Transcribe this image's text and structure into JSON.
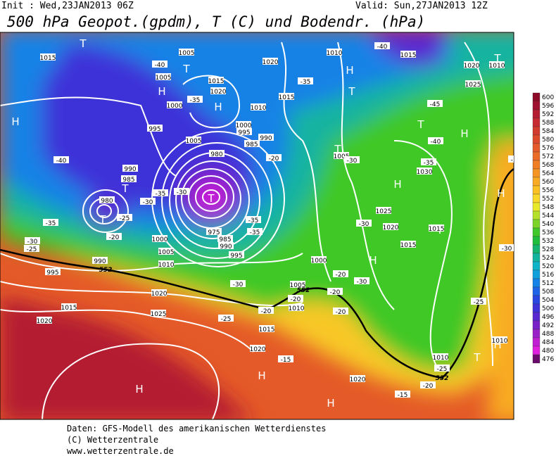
{
  "header": {
    "init": "Init : Wed,23JAN2013 06Z",
    "valid": "Valid: Sun,27JAN2013 12Z",
    "title": "500 hPa Geopot.(gpdm), T (C) und Bodendr. (hPa)"
  },
  "map": {
    "high_labels": [
      "H",
      "H",
      "H",
      "H",
      "H",
      "H",
      "H",
      "H",
      "H",
      "H",
      "H",
      "H"
    ],
    "low_labels": [
      "T",
      "T",
      "T",
      "T",
      "T",
      "T",
      "T",
      "T",
      "T",
      "T",
      "T"
    ],
    "isobar_labels": [
      "1015",
      "1005",
      "1005",
      "1015",
      "1020",
      "1000",
      "995",
      "1005",
      "1020",
      "1010",
      "1015",
      "1020",
      "1010",
      "1025",
      "1015",
      "1010",
      "1000",
      "995",
      "990",
      "985",
      "980",
      "990",
      "985",
      "980",
      "1000",
      "1005",
      "1010",
      "990",
      "995",
      "1020",
      "1015",
      "1020",
      "1025",
      "1000",
      "1005",
      "1010",
      "1015",
      "1020",
      "1020",
      "1005",
      "1030",
      "1025",
      "1020",
      "1015",
      "1015",
      "1010",
      "1010",
      "975",
      "985",
      "990",
      "995"
    ],
    "temperature_labels": [
      "-40",
      "-40",
      "-35",
      "-35",
      "-45",
      "-40",
      "-40",
      "-35",
      "-30",
      "-20",
      "-25",
      "-30",
      "-35",
      "-30",
      "-35",
      "-35",
      "-35",
      "-30",
      "-20",
      "-25",
      "-30",
      "-20",
      "-20",
      "-20",
      "-30",
      "-20",
      "-20",
      "-25",
      "-15",
      "-25",
      "-20",
      "-15",
      "-25",
      "-30",
      "-35",
      "-30"
    ],
    "contour_labels": [
      "552",
      "552",
      "552"
    ]
  },
  "colorbar": {
    "levels": [
      600,
      596,
      592,
      588,
      584,
      580,
      576,
      572,
      568,
      564,
      560,
      556,
      552,
      548,
      544,
      540,
      536,
      532,
      528,
      524,
      520,
      516,
      512,
      508,
      504,
      500,
      496,
      492,
      488,
      484,
      480,
      476
    ],
    "colors": [
      "#8c0a28",
      "#a01030",
      "#b41e32",
      "#c82a32",
      "#d23a2e",
      "#dc4a2a",
      "#e45a28",
      "#ea6c26",
      "#f07e24",
      "#f49424",
      "#f8aa24",
      "#fac024",
      "#f8d828",
      "#e8e82a",
      "#b4e028",
      "#7cd428",
      "#40c828",
      "#1ebe3c",
      "#14b46e",
      "#12b4a0",
      "#10b4c8",
      "#10a0dc",
      "#1482e6",
      "#1e64e6",
      "#2846e0",
      "#3c32d8",
      "#5a28d0",
      "#7a20c8",
      "#9a20c8",
      "#c01ed2",
      "#e01ede",
      "#6a0a6a"
    ]
  },
  "footer": {
    "line1": "Daten: GFS-Modell des amerikanischen Wetterdienstes",
    "line2": "(C) Wetterzentrale",
    "line3": "www.wetterzentrale.de"
  }
}
